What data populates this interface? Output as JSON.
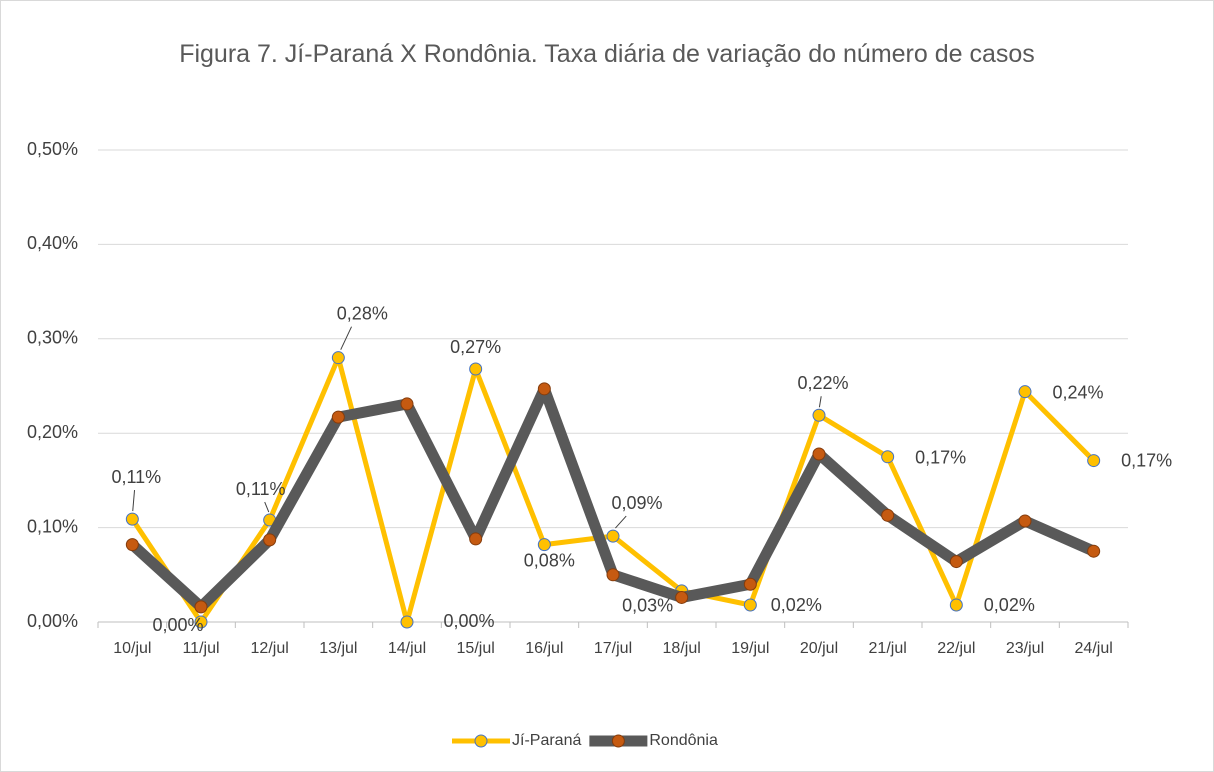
{
  "chart_data": {
    "type": "line",
    "title": "Figura 7. Jí-Paraná X Rondônia. Taxa diária de variação do número de casos",
    "categories": [
      "10/jul",
      "11/jul",
      "12/jul",
      "13/jul",
      "14/jul",
      "15/jul",
      "16/jul",
      "17/jul",
      "18/jul",
      "19/jul",
      "20/jul",
      "21/jul",
      "22/jul",
      "23/jul",
      "24/jul"
    ],
    "series": [
      {
        "name": "Jí-Paraná",
        "color": "#FFC000",
        "marker_color": "#FFC000",
        "marker_edge": "#4472C4",
        "values": [
          0.109,
          0.0,
          0.108,
          0.28,
          0.0,
          0.268,
          0.082,
          0.091,
          0.033,
          0.018,
          0.219,
          0.175,
          0.018,
          0.244,
          0.171
        ],
        "value_labels": [
          "0,11%",
          "0,00%",
          "0,11%",
          "0,28%",
          "0,00%",
          "0,27%",
          "0,08%",
          "0,09%",
          "0,03%",
          "0,02%",
          "0,22%",
          "0,17%",
          "0,02%",
          "0,24%",
          "0,17%"
        ]
      },
      {
        "name": "Rondônia",
        "color": "#595959",
        "marker_color": "#C55A11",
        "marker_edge": "#843C0C",
        "values": [
          0.082,
          0.016,
          0.087,
          0.217,
          0.231,
          0.088,
          0.247,
          0.05,
          0.026,
          0.04,
          0.178,
          0.113,
          0.064,
          0.107,
          0.075
        ]
      }
    ],
    "ylim": [
      0,
      0.5
    ],
    "yticks": [
      {
        "value": 0,
        "label": "0,00%"
      },
      {
        "value": 0.1,
        "label": "0,10%"
      },
      {
        "value": 0.2,
        "label": "0,20%"
      },
      {
        "value": 0.3,
        "label": "0,30%"
      },
      {
        "value": 0.4,
        "label": "0,40%"
      },
      {
        "value": 0.5,
        "label": "0,50%"
      }
    ],
    "grid": true,
    "legend": "bottom"
  }
}
